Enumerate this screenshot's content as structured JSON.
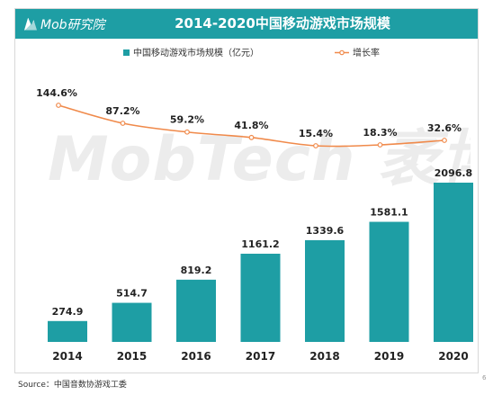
{
  "header": {
    "logo_text": "Mob研究院",
    "title": "2014-2020中国移动游戏市场规模"
  },
  "watermark": "MobTech 袤博",
  "source": "Source：中国音数协游戏工委",
  "page_number": "6",
  "colors": {
    "bar": "#1e9ea4",
    "line": "#f08a4b",
    "title_bar": "#1e9ea4"
  },
  "chart_data": {
    "type": "bar",
    "categories": [
      "2014",
      "2015",
      "2016",
      "2017",
      "2018",
      "2019",
      "2020"
    ],
    "series": [
      {
        "name": "中国移动游戏市场规模（亿元）",
        "type": "bar",
        "values": [
          274.9,
          514.7,
          819.2,
          1161.2,
          1339.6,
          1581.1,
          2096.8
        ],
        "labels": [
          "274.9",
          "514.7",
          "819.2",
          "1161.2",
          "1339.6",
          "1581.1",
          "2096.8"
        ]
      },
      {
        "name": "增长率",
        "type": "line",
        "values": [
          144.6,
          87.2,
          59.2,
          41.8,
          15.4,
          18.3,
          32.6
        ],
        "labels": [
          "144.6%",
          "87.2%",
          "59.2%",
          "41.8%",
          "15.4%",
          "18.3%",
          "32.6%"
        ]
      }
    ],
    "title": "2014-2020中国移动游戏市场规模",
    "legend_position": "top",
    "grid": false
  }
}
